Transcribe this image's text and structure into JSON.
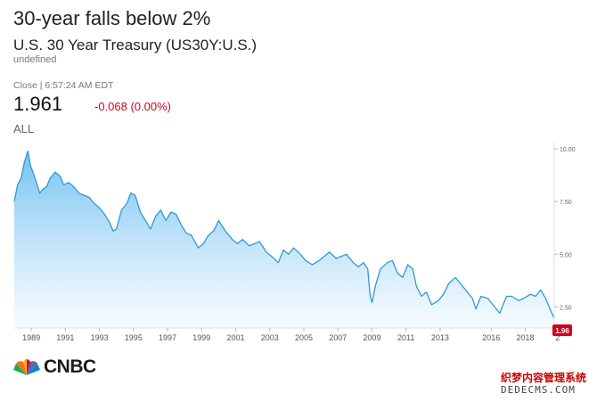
{
  "headline": "30-year falls below 2%",
  "instrument": "U.S. 30 Year Treasury (US30Y:U.S.)",
  "subname": "undefined",
  "close_label": "Close | 6:57:24 AM EDT",
  "price": "1.961",
  "change": "-0.068 (0.00%)",
  "range_label": "ALL",
  "brand": "CNBC",
  "watermark": {
    "line1": "织梦内容管理系统",
    "line2": "DEDECMS.COM"
  },
  "colors": {
    "line": "#2d9bd6",
    "fill_top": "#6cbdf0",
    "fill_bottom": "#eef8ff",
    "badge": "#d0021b",
    "text": "#222222",
    "change": "#d0021b"
  },
  "chart_data": {
    "type": "area",
    "title": "",
    "xlabel": "",
    "ylabel": "",
    "xlim": [
      1988.0,
      2019.7
    ],
    "ylim": [
      1.5,
      10.3
    ],
    "x_ticks": [
      "1989",
      "1991",
      "1993",
      "1995",
      "1997",
      "1999",
      "2001",
      "2003",
      "2005",
      "2007",
      "2009",
      "2011",
      "2013",
      "2016",
      "2018",
      "2"
    ],
    "x_tick_values": [
      1989,
      1991,
      1993,
      1995,
      1997,
      1999,
      2001,
      2003,
      2005,
      2007,
      2009,
      2011,
      2013,
      2016,
      2018,
      2019.9
    ],
    "y_ticks": [
      "10.00",
      "7.50",
      "5.00",
      "2.50"
    ],
    "y_tick_values": [
      10,
      7.5,
      5,
      2.5
    ],
    "last_value_label": "1.96",
    "grid": false,
    "x": [
      1988.0,
      1988.2,
      1988.4,
      1988.6,
      1988.8,
      1988.95,
      1989.1,
      1989.3,
      1989.5,
      1989.7,
      1989.9,
      1990.1,
      1990.4,
      1990.7,
      1990.9,
      1991.2,
      1991.5,
      1991.8,
      1992.1,
      1992.4,
      1992.7,
      1993.0,
      1993.3,
      1993.6,
      1993.8,
      1994.0,
      1994.3,
      1994.6,
      1994.85,
      1995.1,
      1995.4,
      1995.7,
      1996.0,
      1996.3,
      1996.6,
      1996.9,
      1997.2,
      1997.5,
      1997.8,
      1998.1,
      1998.4,
      1998.8,
      1999.1,
      1999.4,
      1999.7,
      2000.0,
      2000.4,
      2000.8,
      2001.1,
      2001.4,
      2001.8,
      2002.1,
      2002.4,
      2002.8,
      2003.1,
      2003.5,
      2003.8,
      2004.1,
      2004.4,
      2004.8,
      2005.1,
      2005.5,
      2005.9,
      2006.2,
      2006.5,
      2006.9,
      2007.2,
      2007.5,
      2007.9,
      2008.2,
      2008.5,
      2008.75,
      2008.9,
      2009.0,
      2009.2,
      2009.5,
      2009.9,
      2010.2,
      2010.5,
      2010.8,
      2011.1,
      2011.4,
      2011.6,
      2011.9,
      2012.2,
      2012.5,
      2012.9,
      2013.2,
      2013.5,
      2013.9,
      2014.2,
      2014.6,
      2014.9,
      2015.1,
      2015.4,
      2015.8,
      2016.1,
      2016.5,
      2016.9,
      2017.2,
      2017.6,
      2017.9,
      2018.3,
      2018.6,
      2018.9,
      2019.2,
      2019.5,
      2019.7
    ],
    "y": [
      7.5,
      8.3,
      8.6,
      9.4,
      9.9,
      9.2,
      8.9,
      8.4,
      7.9,
      8.1,
      8.2,
      8.6,
      8.9,
      8.7,
      8.3,
      8.4,
      8.2,
      7.9,
      7.8,
      7.7,
      7.4,
      7.2,
      6.9,
      6.5,
      6.1,
      6.2,
      7.1,
      7.4,
      7.9,
      7.8,
      7.0,
      6.6,
      6.2,
      6.8,
      7.1,
      6.6,
      7.0,
      6.9,
      6.4,
      6.0,
      5.9,
      5.3,
      5.5,
      5.9,
      6.1,
      6.6,
      6.1,
      5.7,
      5.5,
      5.7,
      5.4,
      5.5,
      5.6,
      5.1,
      4.9,
      4.6,
      5.2,
      5.0,
      5.3,
      5.0,
      4.7,
      4.5,
      4.7,
      4.9,
      5.1,
      4.8,
      4.9,
      5.0,
      4.6,
      4.4,
      4.6,
      4.3,
      3.0,
      2.7,
      3.5,
      4.3,
      4.6,
      4.7,
      4.1,
      3.9,
      4.5,
      4.3,
      3.5,
      3.0,
      3.2,
      2.6,
      2.8,
      3.1,
      3.6,
      3.9,
      3.6,
      3.2,
      2.9,
      2.4,
      3.0,
      2.9,
      2.6,
      2.2,
      3.0,
      3.0,
      2.8,
      2.9,
      3.1,
      3.0,
      3.3,
      2.9,
      2.3,
      1.96
    ]
  }
}
